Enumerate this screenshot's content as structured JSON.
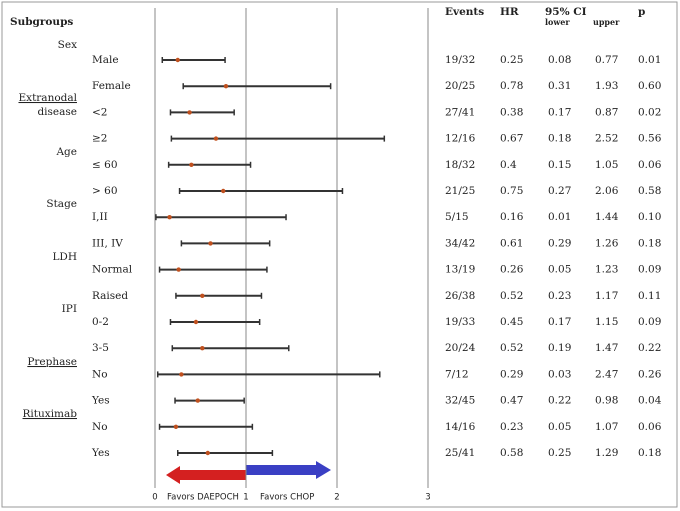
{
  "chart_data": {
    "type": "forest",
    "row_header": "Subgroups",
    "groups": [
      "Sex",
      "Extranodal",
      "disease",
      "Age",
      "Stage",
      "LDH",
      "IPI",
      "Prephase",
      "Rituximab"
    ],
    "categories": [
      "Male",
      "Female",
      "<2",
      "≥2",
      "≤ 60",
      "> 60",
      "I,II",
      "III, IV",
      "Normal",
      "Raised",
      "0-2",
      "3-5",
      "No",
      "Yes",
      "No",
      "Yes"
    ],
    "columns": {
      "events": "Events",
      "hr": "HR",
      "ci": "95% CI",
      "lower": "lower",
      "upper": "upper",
      "p": "p"
    },
    "events": [
      "19/32",
      "20/25",
      "27/41",
      "12/16",
      "18/32",
      "21/25",
      "5/15",
      "34/42",
      "13/19",
      "26/38",
      "19/33",
      "20/24",
      "7/12",
      "32/45",
      "14/16",
      "25/41"
    ],
    "hr": [
      0.25,
      0.78,
      0.38,
      0.67,
      0.4,
      0.75,
      0.16,
      0.61,
      0.26,
      0.52,
      0.45,
      0.52,
      0.29,
      0.47,
      0.23,
      0.58
    ],
    "lower": [
      0.08,
      0.31,
      0.17,
      0.18,
      0.15,
      0.27,
      0.01,
      0.29,
      0.05,
      0.23,
      0.17,
      0.19,
      0.03,
      0.22,
      0.05,
      0.25
    ],
    "upper": [
      0.77,
      1.93,
      0.87,
      2.52,
      1.05,
      2.06,
      1.44,
      1.26,
      1.23,
      1.17,
      1.15,
      1.47,
      2.47,
      0.98,
      1.07,
      1.29
    ],
    "p": {
      "values": [
        0.01,
        0.6,
        0.02,
        0.56,
        0.06,
        0.58,
        0.1,
        0.18,
        0.09,
        0.11,
        0.09,
        0.22,
        0.26,
        0.04,
        0.06,
        0.18
      ],
      "value_labels": [
        "0.01",
        "0.60",
        "0.02",
        "0.56",
        "0.06",
        "0.58",
        "0.10",
        "0.18",
        "0.09",
        "0.11",
        "0.09",
        "0.22",
        "0.26",
        "0.04",
        "0.06",
        "0.18"
      ]
    },
    "xlim": [
      0,
      3
    ],
    "xticks": [
      0,
      1,
      2,
      3
    ],
    "grid": true,
    "annotations": [
      "Favors DAEPOCH",
      "Favors CHOP"
    ],
    "ci_color": "#333333",
    "marker_color": "#c0501e"
  }
}
